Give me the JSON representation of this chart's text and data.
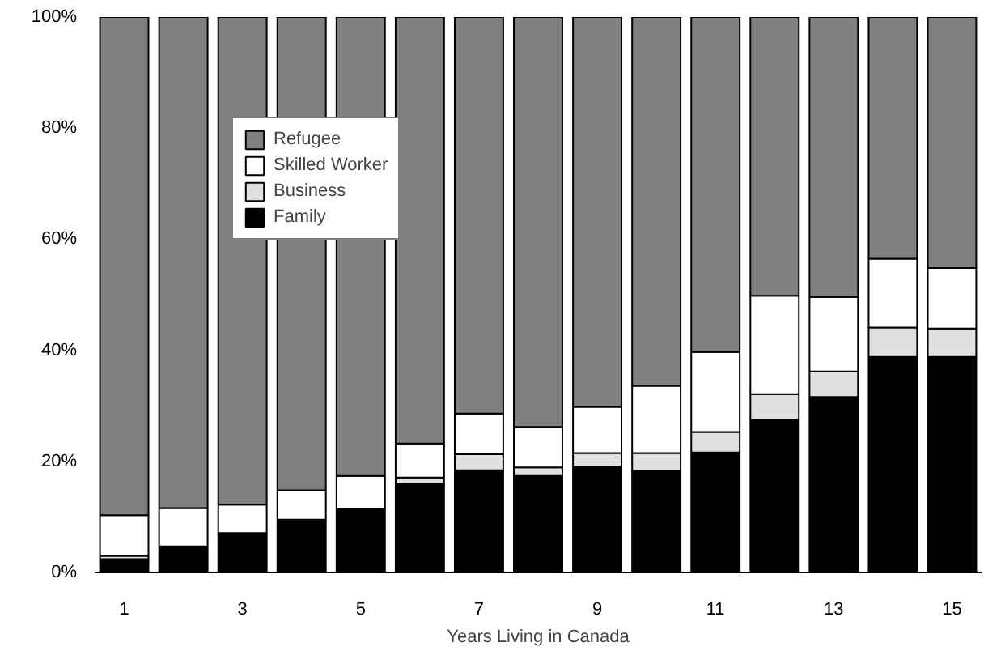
{
  "chart_data": {
    "type": "bar",
    "stacked": true,
    "xlabel": "Years Living in Canada",
    "categories": [
      "1",
      null,
      "3",
      null,
      "5",
      null,
      "7",
      null,
      "9",
      null,
      "11",
      null,
      "13",
      null,
      "15"
    ],
    "series": [
      {
        "name": "Family",
        "color": "#000000",
        "values": [
          2.4,
          4.7,
          7.1,
          9.1,
          11.4,
          15.9,
          18.4,
          17.4,
          19.1,
          18.3,
          21.6,
          27.5,
          31.6,
          38.8,
          38.8
        ]
      },
      {
        "name": "Business",
        "color": "#e0e0e0",
        "values": [
          0.6,
          null,
          0,
          0.4,
          0,
          1.2,
          2.9,
          1.5,
          2.4,
          3.2,
          3.7,
          4.6,
          4.6,
          5.3,
          5.1
        ]
      },
      {
        "name": "Skilled Worker",
        "color": "#ffffff",
        "values": [
          7.3,
          6.9,
          5.1,
          5.3,
          6.0,
          6.1,
          7.3,
          7.3,
          8.3,
          12.1,
          14.4,
          17.7,
          13.4,
          12.4,
          10.9
        ]
      },
      {
        "name": "Refugee",
        "color": "#808080",
        "values": [
          89.7,
          88.4,
          87.8,
          85.2,
          82.6,
          76.8,
          71.4,
          73.8,
          70.2,
          66.4,
          60.3,
          50.2,
          50.4,
          43.5,
          45.2
        ]
      }
    ],
    "ylim": [
      0,
      100
    ],
    "yticks": [
      {
        "value": 0,
        "label": "0%"
      },
      {
        "value": 20,
        "label": "20%"
      },
      {
        "value": 40,
        "label": "40%"
      },
      {
        "value": 60,
        "label": "60%"
      },
      {
        "value": 80,
        "label": "80%"
      },
      {
        "value": 100,
        "label": "100%"
      }
    ],
    "legend": "top left",
    "grid": false
  }
}
